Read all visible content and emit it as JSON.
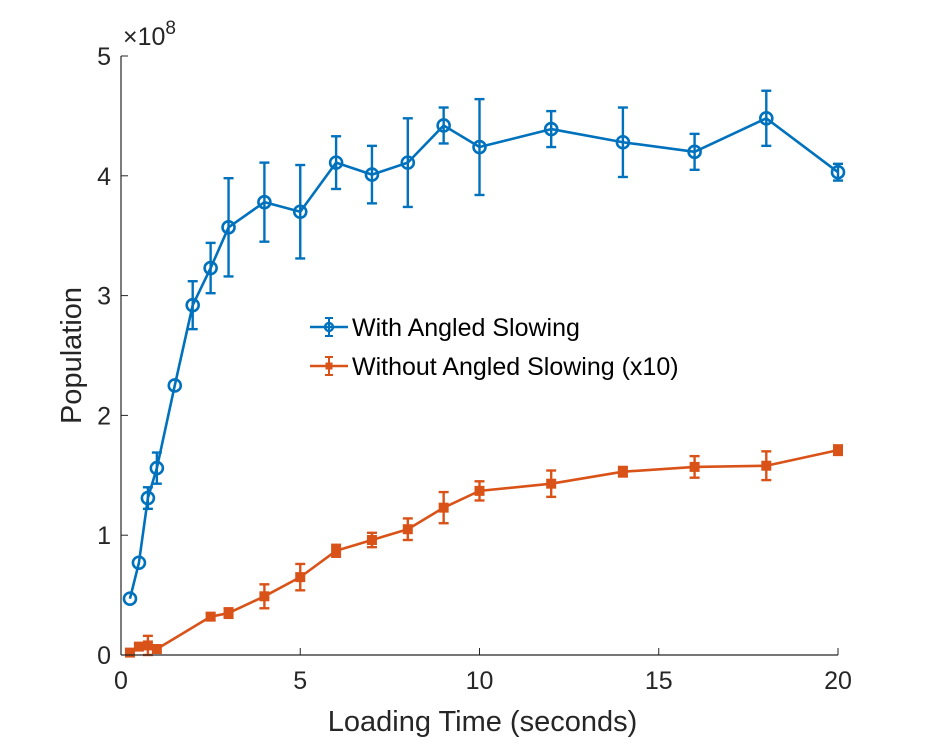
{
  "chart_data": {
    "type": "line",
    "xlabel": "Loading Time (seconds)",
    "ylabel": "Population",
    "xlim": [
      0,
      20
    ],
    "ylim": [
      0,
      5
    ],
    "xticks": [
      "0",
      "5",
      "10",
      "15",
      "20"
    ],
    "yticks": [
      "0",
      "1",
      "2",
      "3",
      "4",
      "5"
    ],
    "y_exponent_label": {
      "base": "×10",
      "power": "8"
    },
    "legend_position": "center",
    "grid": false,
    "series": [
      {
        "name": "With Angled Slowing",
        "color": "#0072BD",
        "marker": "circle",
        "x": [
          0.25,
          0.5,
          0.75,
          1,
          1.5,
          2,
          2.5,
          3,
          4,
          5,
          6,
          7,
          8,
          9,
          10,
          12,
          14,
          16,
          18,
          20
        ],
        "y": [
          0.47,
          0.77,
          1.31,
          1.56,
          2.25,
          2.92,
          3.23,
          3.57,
          3.78,
          3.7,
          4.11,
          4.01,
          4.11,
          4.42,
          4.24,
          4.39,
          4.28,
          4.2,
          4.48,
          4.03
        ],
        "err": [
          0.0,
          0.0,
          0.09,
          0.13,
          0.0,
          0.2,
          0.21,
          0.41,
          0.33,
          0.39,
          0.22,
          0.24,
          0.37,
          0.15,
          0.4,
          0.15,
          0.29,
          0.15,
          0.23,
          0.07
        ]
      },
      {
        "name": "Without Angled Slowing (x10)",
        "color": "#D95319",
        "marker": "square",
        "x": [
          0.25,
          0.5,
          0.75,
          1,
          2.5,
          3,
          4,
          5,
          6,
          7,
          8,
          9,
          10,
          12,
          14,
          16,
          18,
          20
        ],
        "y": [
          0.02,
          0.07,
          0.08,
          0.05,
          0.32,
          0.35,
          0.49,
          0.65,
          0.87,
          0.96,
          1.05,
          1.23,
          1.37,
          1.43,
          1.53,
          1.57,
          1.58,
          1.71
        ],
        "err": [
          0.0,
          0.02,
          0.08,
          0.0,
          0.03,
          0.04,
          0.1,
          0.11,
          0.05,
          0.06,
          0.09,
          0.13,
          0.08,
          0.11,
          0.04,
          0.09,
          0.12,
          0.04
        ]
      }
    ]
  }
}
